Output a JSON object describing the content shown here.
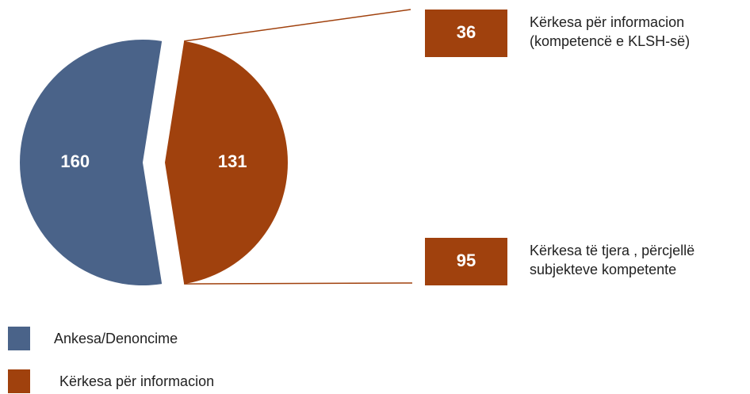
{
  "chart_data": {
    "type": "pie",
    "categories": [
      "Ankesa/Denoncime",
      "Kërkesa për informacion"
    ],
    "values": [
      160,
      131
    ],
    "colors": [
      "#4a6389",
      "#a0410d"
    ],
    "exploded": 1,
    "breakdown": {
      "values": [
        36,
        95
      ],
      "labels": [
        [
          "Kërkesa për informacion",
          "(kompetencë e KLSH-së)"
        ],
        [
          "Kërkesa të tjera , përcjellë",
          "subjekteve kompetente"
        ]
      ]
    }
  }
}
